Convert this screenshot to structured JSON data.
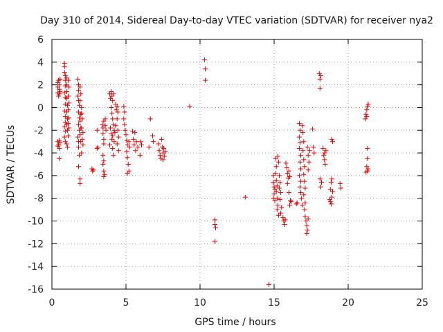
{
  "chart_data": {
    "type": "scatter",
    "title": "Day 310 of 2014, Sidereal Day-to-day VTEC variation (SDTVAR) for receiver nya2",
    "xlabel": "GPS time / hours",
    "ylabel": "SDTVAR / TECUs",
    "xlim": [
      0,
      25
    ],
    "ylim": [
      -16,
      6
    ],
    "xticks": [
      0,
      5,
      10,
      15,
      20,
      25
    ],
    "yticks": [
      -16,
      -14,
      -12,
      -10,
      -8,
      -6,
      -4,
      -2,
      0,
      2,
      4,
      6
    ],
    "grid": true,
    "marker": "+",
    "color": "#dd0000",
    "series": [
      {
        "name": "SDTVAR",
        "points": [
          [
            0.4,
            2.2
          ],
          [
            0.4,
            1.8
          ],
          [
            0.4,
            1.3
          ],
          [
            0.45,
            2.4
          ],
          [
            0.45,
            1.0
          ],
          [
            0.5,
            1.6
          ],
          [
            0.5,
            2.0
          ],
          [
            0.5,
            1.2
          ],
          [
            0.55,
            1.4
          ],
          [
            0.55,
            2.5
          ],
          [
            0.4,
            -3.0
          ],
          [
            0.45,
            -3.3
          ],
          [
            0.5,
            -3.6
          ],
          [
            0.5,
            -2.9
          ],
          [
            0.55,
            -3.1
          ],
          [
            0.5,
            -4.5
          ],
          [
            0.4,
            -3.4
          ],
          [
            0.85,
            3.9
          ],
          [
            0.85,
            3.6
          ],
          [
            0.85,
            3.1
          ],
          [
            0.9,
            2.8
          ],
          [
            0.9,
            2.4
          ],
          [
            0.9,
            1.9
          ],
          [
            0.85,
            1.3
          ],
          [
            0.9,
            0.9
          ],
          [
            0.9,
            0.3
          ],
          [
            0.85,
            -0.3
          ],
          [
            0.9,
            -0.8
          ],
          [
            0.9,
            -1.3
          ],
          [
            0.85,
            -1.7
          ],
          [
            0.9,
            -2.1
          ],
          [
            0.85,
            -2.6
          ],
          [
            0.9,
            -3.0
          ],
          [
            1.0,
            2.6
          ],
          [
            1.0,
            2.0
          ],
          [
            1.0,
            1.4
          ],
          [
            1.0,
            0.8
          ],
          [
            1.05,
            0.2
          ],
          [
            1.0,
            -0.4
          ],
          [
            1.05,
            -1.0
          ],
          [
            1.0,
            -1.5
          ],
          [
            1.05,
            -2.0
          ],
          [
            1.0,
            -3.2
          ],
          [
            1.05,
            -3.5
          ],
          [
            1.1,
            2.4
          ],
          [
            1.15,
            1.8
          ],
          [
            1.1,
            1.0
          ],
          [
            1.15,
            0.4
          ],
          [
            1.1,
            -0.2
          ],
          [
            1.15,
            -0.9
          ],
          [
            1.1,
            -1.4
          ],
          [
            1.15,
            -1.8
          ],
          [
            1.1,
            -2.5
          ],
          [
            1.75,
            2.5
          ],
          [
            1.8,
            2.0
          ],
          [
            1.8,
            1.5
          ],
          [
            1.75,
            1.0
          ],
          [
            1.8,
            0.6
          ],
          [
            1.85,
            0.2
          ],
          [
            1.8,
            -0.4
          ],
          [
            1.85,
            -0.9
          ],
          [
            1.8,
            -1.5
          ],
          [
            1.85,
            -2.0
          ],
          [
            1.75,
            -2.6
          ],
          [
            1.8,
            -3.0
          ],
          [
            1.8,
            -3.5
          ],
          [
            1.85,
            -4.2
          ],
          [
            1.8,
            -5.2
          ],
          [
            1.9,
            1.8
          ],
          [
            1.95,
            1.2
          ],
          [
            1.9,
            0.6
          ],
          [
            2.0,
            0.0
          ],
          [
            1.95,
            -0.6
          ],
          [
            1.9,
            -1.2
          ],
          [
            1.95,
            -1.8
          ],
          [
            1.9,
            -2.4
          ],
          [
            1.95,
            -3.0
          ],
          [
            1.9,
            -6.3
          ],
          [
            1.9,
            -6.7
          ],
          [
            2.0,
            -0.5
          ],
          [
            2.05,
            -1.0
          ],
          [
            2.0,
            -1.8
          ],
          [
            2.1,
            -2.2
          ],
          [
            2.05,
            -2.8
          ],
          [
            2.1,
            -3.3
          ],
          [
            2.0,
            -4.0
          ],
          [
            2.7,
            -5.4
          ],
          [
            2.75,
            -5.6
          ],
          [
            2.8,
            -5.5
          ],
          [
            3.05,
            -2.0
          ],
          [
            3.05,
            -3.6
          ],
          [
            3.1,
            -3.5
          ],
          [
            3.4,
            -1.5
          ],
          [
            3.45,
            -1.8
          ],
          [
            3.45,
            -2.3
          ],
          [
            3.5,
            -1.2
          ],
          [
            3.5,
            -2.8
          ],
          [
            3.5,
            -3.2
          ],
          [
            3.45,
            -4.2
          ],
          [
            3.5,
            -4.7
          ],
          [
            3.45,
            -5.0
          ],
          [
            3.5,
            -5.6
          ],
          [
            3.55,
            -5.9
          ],
          [
            3.5,
            -6.1
          ],
          [
            3.6,
            -1.0
          ],
          [
            3.6,
            -1.6
          ],
          [
            3.65,
            -2.0
          ],
          [
            3.9,
            1.2
          ],
          [
            3.95,
            0.8
          ],
          [
            4.0,
            1.4
          ],
          [
            4.05,
            1.0
          ],
          [
            4.1,
            0.6
          ],
          [
            4.15,
            1.2
          ],
          [
            4.0,
            0.0
          ],
          [
            4.05,
            -0.5
          ],
          [
            4.1,
            -1.0
          ],
          [
            4.15,
            -1.5
          ],
          [
            4.2,
            -2.0
          ],
          [
            4.1,
            -2.5
          ],
          [
            4.2,
            -3.0
          ],
          [
            4.25,
            -2.2
          ],
          [
            4.3,
            -1.6
          ],
          [
            3.95,
            -1.8
          ],
          [
            4.0,
            -2.3
          ],
          [
            4.05,
            -2.8
          ],
          [
            3.9,
            -3.3
          ],
          [
            4.1,
            -3.6
          ],
          [
            4.15,
            -4.2
          ],
          [
            4.3,
            0.3
          ],
          [
            4.35,
            -0.2
          ],
          [
            4.4,
            0.1
          ],
          [
            4.45,
            -0.4
          ],
          [
            4.4,
            -1.0
          ],
          [
            4.45,
            -2.0
          ],
          [
            4.5,
            -2.6
          ],
          [
            4.4,
            -3.2
          ],
          [
            4.5,
            -3.8
          ],
          [
            4.85,
            0.1
          ],
          [
            4.9,
            -0.4
          ],
          [
            4.85,
            -1.0
          ],
          [
            4.9,
            -1.5
          ],
          [
            4.95,
            -2.0
          ],
          [
            5.0,
            -2.4
          ],
          [
            5.05,
            -2.9
          ],
          [
            5.1,
            -3.3
          ],
          [
            5.05,
            -3.9
          ],
          [
            5.1,
            -4.4
          ],
          [
            5.15,
            -5.0
          ],
          [
            5.2,
            -5.6
          ],
          [
            5.1,
            -5.8
          ],
          [
            5.2,
            -3.0
          ],
          [
            5.25,
            -3.5
          ],
          [
            5.45,
            -2.1
          ],
          [
            5.5,
            -2.8
          ],
          [
            5.55,
            -3.3
          ],
          [
            5.6,
            -2.2
          ],
          [
            5.65,
            -3.8
          ],
          [
            5.7,
            -3.0
          ],
          [
            5.8,
            -3.5
          ],
          [
            6.0,
            -3.0
          ],
          [
            5.95,
            -4.2
          ],
          [
            6.05,
            -3.3
          ],
          [
            6.55,
            -3.5
          ],
          [
            6.65,
            -1.0
          ],
          [
            6.8,
            -2.5
          ],
          [
            6.85,
            -3.0
          ],
          [
            7.2,
            -3.2
          ],
          [
            7.25,
            -3.8
          ],
          [
            7.3,
            -4.2
          ],
          [
            7.35,
            -4.5
          ],
          [
            7.4,
            -2.8
          ],
          [
            7.45,
            -3.5
          ],
          [
            7.5,
            -4.0
          ],
          [
            7.55,
            -3.6
          ],
          [
            7.6,
            -4.3
          ],
          [
            7.5,
            -4.6
          ],
          [
            7.65,
            -3.9
          ],
          [
            9.3,
            0.1
          ],
          [
            10.3,
            4.2
          ],
          [
            10.35,
            3.4
          ],
          [
            10.35,
            2.4
          ],
          [
            11.0,
            -9.9
          ],
          [
            11.0,
            -10.3
          ],
          [
            11.05,
            -10.6
          ],
          [
            11.0,
            -11.8
          ],
          [
            13.05,
            -7.9
          ],
          [
            14.65,
            -15.6
          ],
          [
            14.95,
            -6.0
          ],
          [
            14.95,
            -6.6
          ],
          [
            15.0,
            -7.0
          ],
          [
            15.0,
            -7.6
          ],
          [
            15.05,
            -8.2
          ],
          [
            14.95,
            -8.0
          ],
          [
            15.05,
            -7.2
          ],
          [
            15.1,
            -4.5
          ],
          [
            15.15,
            -5.2
          ],
          [
            15.1,
            -5.8
          ],
          [
            15.15,
            -6.4
          ],
          [
            15.2,
            -6.9
          ],
          [
            15.15,
            -7.4
          ],
          [
            15.2,
            -8.0
          ],
          [
            15.25,
            -8.6
          ],
          [
            15.2,
            -9.0
          ],
          [
            15.3,
            -9.5
          ],
          [
            15.25,
            -4.3
          ],
          [
            15.3,
            -4.8
          ],
          [
            15.35,
            -6.0
          ],
          [
            15.4,
            -6.6
          ],
          [
            15.35,
            -7.1
          ],
          [
            15.45,
            -7.5
          ],
          [
            15.4,
            -8.1
          ],
          [
            15.5,
            -8.8
          ],
          [
            15.45,
            -9.3
          ],
          [
            15.6,
            -9.7
          ],
          [
            15.65,
            -10.0
          ],
          [
            15.7,
            -10.3
          ],
          [
            15.75,
            -9.9
          ],
          [
            15.8,
            -4.9
          ],
          [
            15.85,
            -5.3
          ],
          [
            15.9,
            -5.8
          ],
          [
            15.95,
            -6.2
          ],
          [
            15.9,
            -6.7
          ],
          [
            16.0,
            -5.6
          ],
          [
            16.05,
            -6.1
          ],
          [
            16.0,
            -7.5
          ],
          [
            16.1,
            -8.2
          ],
          [
            16.05,
            -8.6
          ],
          [
            16.15,
            -8.3
          ],
          [
            16.5,
            -8.5
          ],
          [
            16.55,
            -8.4
          ],
          [
            16.7,
            -1.4
          ],
          [
            16.75,
            -2.0
          ],
          [
            16.7,
            -2.6
          ],
          [
            16.75,
            -3.1
          ],
          [
            16.7,
            -3.6
          ],
          [
            16.8,
            -4.2
          ],
          [
            16.75,
            -4.8
          ],
          [
            16.8,
            -5.4
          ],
          [
            16.7,
            -6.0
          ],
          [
            16.8,
            -6.5
          ],
          [
            16.75,
            -7.0
          ],
          [
            16.8,
            -7.5
          ],
          [
            16.85,
            -8.0
          ],
          [
            16.9,
            -8.6
          ],
          [
            16.9,
            -1.6
          ],
          [
            16.95,
            -2.2
          ],
          [
            17.0,
            -3.0
          ],
          [
            16.95,
            -3.8
          ],
          [
            17.0,
            -4.6
          ],
          [
            17.05,
            -5.2
          ],
          [
            17.0,
            -5.9
          ],
          [
            17.05,
            -6.5
          ],
          [
            17.1,
            -7.1
          ],
          [
            17.0,
            -7.7
          ],
          [
            17.1,
            -8.4
          ],
          [
            17.05,
            -9.0
          ],
          [
            17.1,
            -9.6
          ],
          [
            17.15,
            -10.0
          ],
          [
            17.2,
            -10.4
          ],
          [
            17.25,
            -10.8
          ],
          [
            17.2,
            -11.1
          ],
          [
            17.3,
            -9.8
          ],
          [
            17.25,
            -3.5
          ],
          [
            17.3,
            -4.2
          ],
          [
            17.35,
            -4.8
          ],
          [
            17.3,
            -5.5
          ],
          [
            17.4,
            -3.8
          ],
          [
            17.6,
            -1.9
          ],
          [
            17.65,
            -3.5
          ],
          [
            17.7,
            -4.0
          ],
          [
            18.05,
            3.0
          ],
          [
            18.1,
            2.5
          ],
          [
            18.1,
            1.7
          ],
          [
            18.15,
            2.8
          ],
          [
            18.1,
            -6.3
          ],
          [
            18.15,
            -7.0
          ],
          [
            18.2,
            -6.6
          ],
          [
            18.3,
            -3.6
          ],
          [
            18.35,
            -4.2
          ],
          [
            18.4,
            -4.6
          ],
          [
            18.45,
            -5.0
          ],
          [
            18.4,
            -4.0
          ],
          [
            18.5,
            -3.8
          ],
          [
            18.75,
            -8.1
          ],
          [
            18.8,
            -8.3
          ],
          [
            18.85,
            -8.5
          ],
          [
            18.9,
            -7.9
          ],
          [
            18.8,
            -7.2
          ],
          [
            18.85,
            -6.6
          ],
          [
            18.9,
            -6.3
          ],
          [
            18.95,
            -7.4
          ],
          [
            18.9,
            -2.8
          ],
          [
            18.95,
            -3.0
          ],
          [
            19.45,
            -6.7
          ],
          [
            19.5,
            -7.1
          ],
          [
            21.15,
            -1.0
          ],
          [
            21.2,
            -0.6
          ],
          [
            21.25,
            -0.2
          ],
          [
            21.3,
            0.1
          ],
          [
            21.35,
            0.3
          ],
          [
            21.25,
            -0.8
          ],
          [
            21.3,
            -3.6
          ],
          [
            21.3,
            -4.5
          ],
          [
            21.25,
            -5.2
          ],
          [
            21.3,
            -5.6
          ],
          [
            21.35,
            -5.4
          ],
          [
            21.2,
            -5.7
          ]
        ]
      }
    ]
  }
}
